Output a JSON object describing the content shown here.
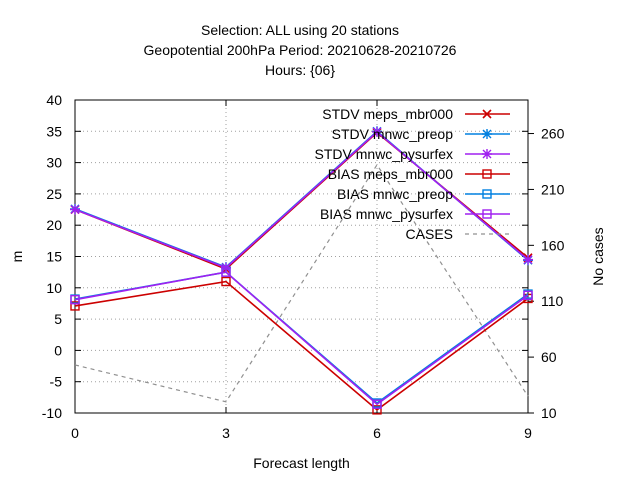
{
  "chart_data": {
    "type": "line",
    "title_lines": [
      "Selection: ALL using    20 stations",
      "Geopotential 200hPa   Period: 20210628-20210726",
      "Hours: {06}"
    ],
    "xlabel": "Forecast length",
    "ylabel": "m",
    "y2label": "No cases",
    "x": [
      0,
      3,
      6,
      9
    ],
    "xlim": [
      0,
      9
    ],
    "xticks": [
      "0",
      "3",
      "6",
      "9"
    ],
    "ylim": [
      -10,
      40
    ],
    "yticks": [
      "-10",
      "-5",
      "0",
      "5",
      "10",
      "15",
      "20",
      "25",
      "30",
      "35",
      "40"
    ],
    "y2lim": [
      10,
      290
    ],
    "y2ticks": [
      "10",
      "60",
      "110",
      "160",
      "210",
      "260"
    ],
    "grid": true,
    "legend_position": "top-right",
    "series": [
      {
        "name": "STDV meps_mbr000",
        "axis": "y1",
        "color": "#cc0000",
        "marker": "x",
        "dash": false,
        "values": [
          22.5,
          13.0,
          34.8,
          14.8
        ]
      },
      {
        "name": "STDV mnwc_preop",
        "axis": "y1",
        "color": "#0080e0",
        "marker": "star",
        "dash": false,
        "values": [
          22.6,
          13.3,
          35.0,
          14.4
        ]
      },
      {
        "name": "STDV mnwc_pysurfex",
        "axis": "y1",
        "color": "#a020f0",
        "marker": "star",
        "dash": false,
        "values": [
          22.5,
          13.2,
          34.9,
          14.5
        ]
      },
      {
        "name": "BIAS meps_mbr000",
        "axis": "y1",
        "color": "#cc0000",
        "marker": "square",
        "dash": false,
        "values": [
          7.1,
          11.0,
          -9.5,
          8.3
        ]
      },
      {
        "name": "BIAS mnwc_preop",
        "axis": "y1",
        "color": "#0080e0",
        "marker": "square",
        "dash": false,
        "values": [
          8.2,
          12.5,
          -8.4,
          9.0
        ]
      },
      {
        "name": "BIAS mnwc_pysurfex",
        "axis": "y1",
        "color": "#a020f0",
        "marker": "square",
        "dash": false,
        "values": [
          8.1,
          12.5,
          -8.6,
          8.8
        ]
      },
      {
        "name": "CASES",
        "axis": "y2",
        "color": "#909090",
        "marker": "none",
        "dash": true,
        "values": [
          53,
          20,
          232,
          25
        ]
      }
    ]
  }
}
